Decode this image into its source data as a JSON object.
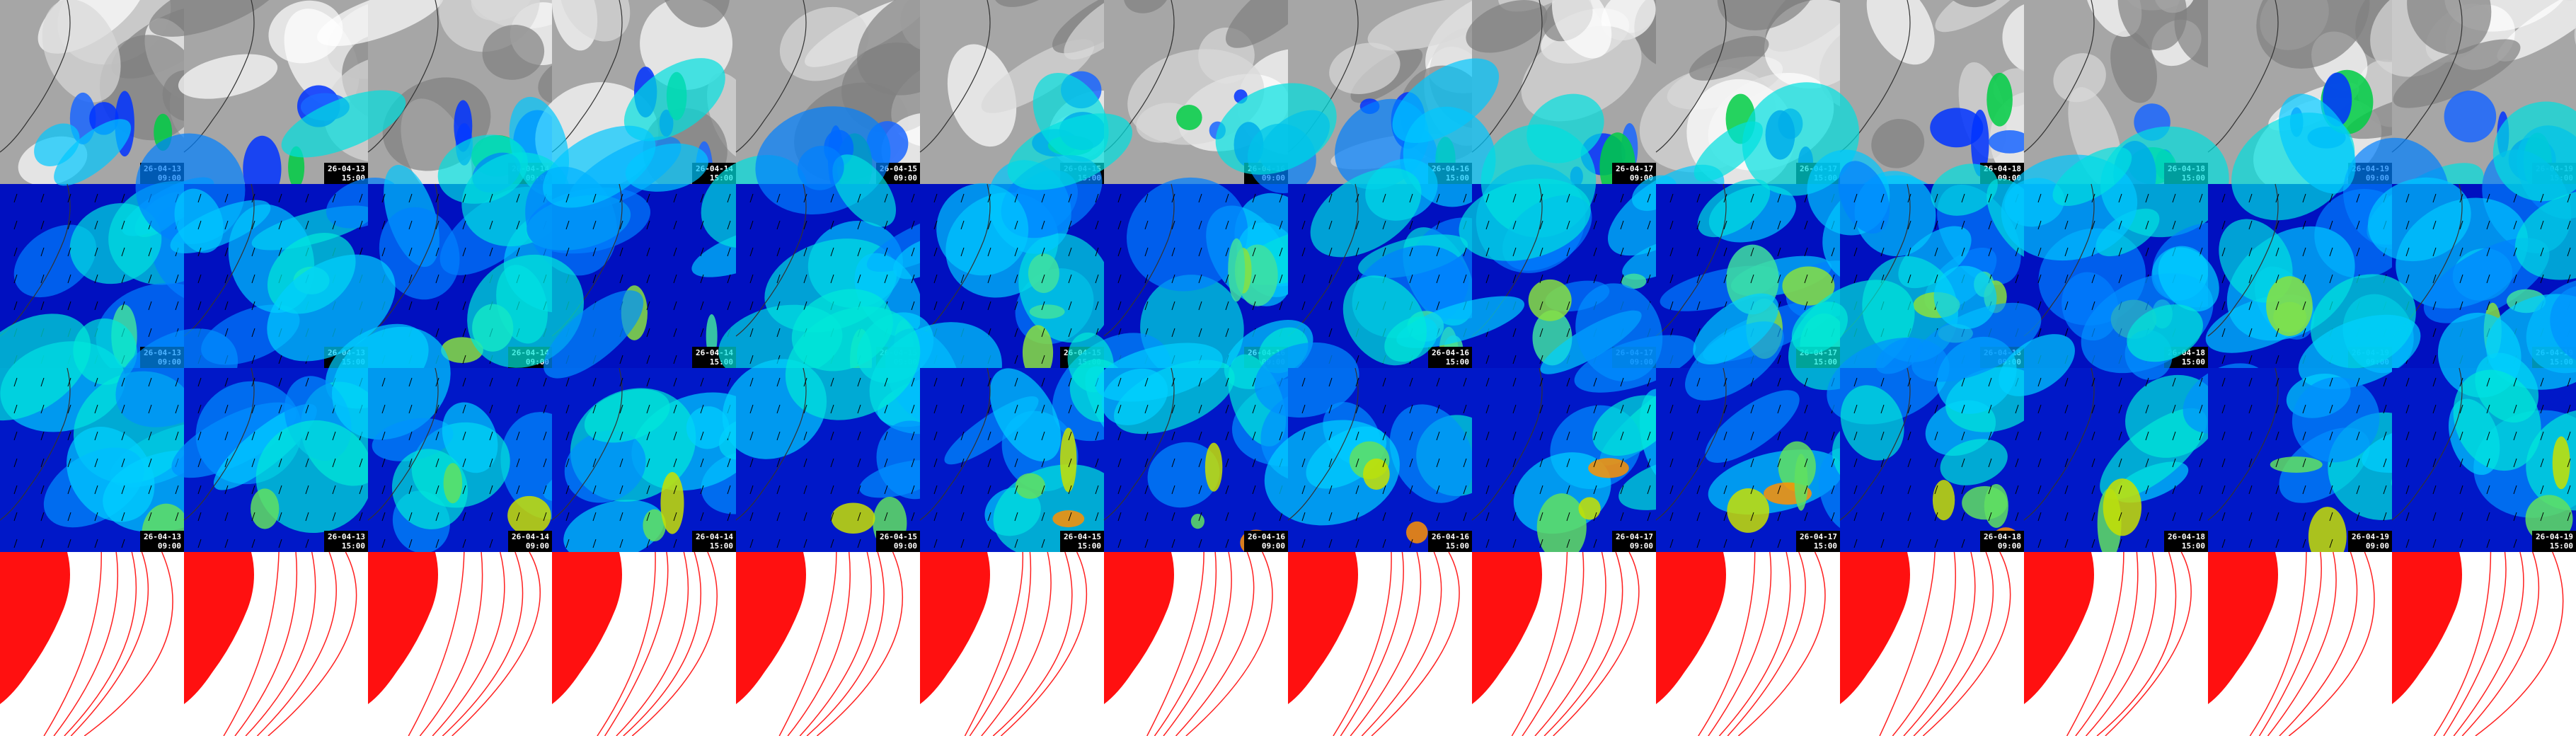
{
  "columns": [
    {
      "date": "26-04-13",
      "time": "09:00"
    },
    {
      "date": "26-04-13",
      "time": "15:00"
    },
    {
      "date": "26-04-14",
      "time": "09:00"
    },
    {
      "date": "26-04-14",
      "time": "15:00"
    },
    {
      "date": "26-04-15",
      "time": "09:00"
    },
    {
      "date": "26-04-15",
      "time": "15:00"
    },
    {
      "date": "26-04-16",
      "time": "09:00"
    },
    {
      "date": "26-04-16",
      "time": "15:00"
    },
    {
      "date": "26-04-17",
      "time": "09:00"
    },
    {
      "date": "26-04-17",
      "time": "15:00"
    },
    {
      "date": "26-04-18",
      "time": "09:00"
    },
    {
      "date": "26-04-18",
      "time": "15:00"
    },
    {
      "date": "26-04-19",
      "time": "09:00"
    },
    {
      "date": "26-04-19",
      "time": "15:00"
    }
  ]
}
